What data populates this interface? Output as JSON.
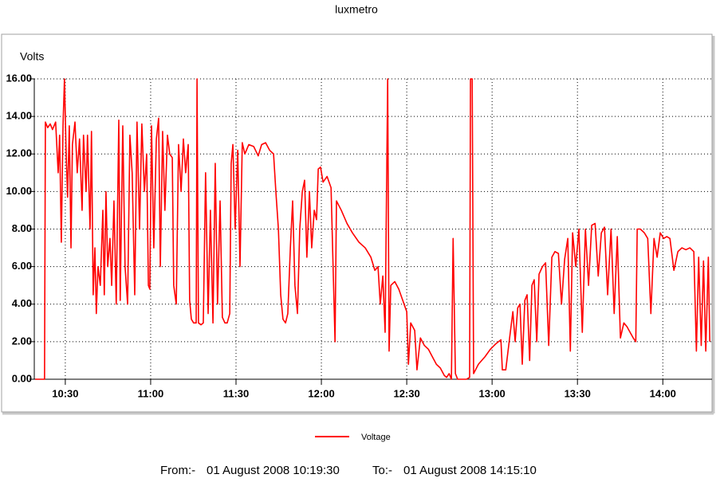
{
  "chart_data": {
    "type": "line",
    "title": "luxmetro",
    "y_label": "Volts",
    "legend": "bottom",
    "grid": true,
    "xlim": [
      619.1,
      857.3
    ],
    "xticks": [
      {
        "value": 630,
        "label": "10:30"
      },
      {
        "value": 660,
        "label": "11:00"
      },
      {
        "value": 690,
        "label": "11:30"
      },
      {
        "value": 720,
        "label": "12:00"
      },
      {
        "value": 750,
        "label": "12:30"
      },
      {
        "value": 780,
        "label": "13:00"
      },
      {
        "value": 810,
        "label": "13:30"
      },
      {
        "value": 840,
        "label": "14:00"
      }
    ],
    "ylim": [
      0,
      16
    ],
    "yticks": [
      {
        "value": 0,
        "label": "0.00"
      },
      {
        "value": 2,
        "label": "2.00"
      },
      {
        "value": 4,
        "label": "4.00"
      },
      {
        "value": 6,
        "label": "6.00"
      },
      {
        "value": 8,
        "label": "8.00"
      },
      {
        "value": 10,
        "label": "10.00"
      },
      {
        "value": 12,
        "label": "12.00"
      },
      {
        "value": 14,
        "label": "14.00"
      },
      {
        "value": 16,
        "label": "16.00"
      }
    ],
    "x": [
      619.4,
      622.7,
      623.0,
      623.8,
      624.7,
      625.5,
      626.6,
      627.5,
      628.0,
      628.6,
      629.2,
      629.7,
      630.3,
      630.8,
      631.4,
      632.0,
      632.5,
      633.4,
      634.2,
      635.0,
      635.9,
      636.4,
      637.3,
      637.8,
      638.7,
      639.2,
      639.8,
      640.4,
      640.9,
      641.5,
      642.3,
      643.2,
      643.7,
      644.3,
      644.9,
      645.7,
      646.3,
      647.1,
      647.9,
      648.8,
      649.3,
      650.2,
      651.0,
      651.9,
      652.7,
      653.5,
      654.4,
      655.2,
      656.1,
      656.9,
      657.8,
      658.6,
      659.2,
      659.7,
      660.3,
      661.1,
      662.0,
      662.8,
      663.4,
      664.2,
      665.0,
      665.9,
      666.7,
      667.6,
      668.1,
      669.0,
      669.8,
      670.7,
      671.5,
      672.3,
      673.2,
      673.7,
      674.3,
      675.1,
      676.0,
      676.3,
      676.8,
      677.7,
      678.5,
      679.3,
      680.2,
      681.0,
      681.9,
      682.7,
      683.5,
      684.4,
      685.2,
      686.1,
      686.9,
      687.8,
      688.3,
      688.9,
      689.7,
      690.6,
      691.4,
      692.2,
      693.1,
      694.5,
      696.2,
      697.8,
      699.0,
      700.4,
      701.8,
      703.2,
      704.0,
      704.9,
      705.7,
      706.5,
      707.4,
      708.2,
      709.1,
      709.9,
      710.7,
      711.6,
      712.4,
      713.3,
      714.1,
      714.9,
      715.8,
      716.6,
      717.5,
      718.3,
      718.9,
      719.7,
      720.6,
      722.0,
      723.4,
      724.8,
      725.3,
      727.0,
      729.0,
      730.9,
      733.2,
      735.4,
      737.4,
      738.8,
      739.9,
      740.7,
      741.6,
      742.4,
      743.3,
      743.8,
      744.4,
      745.8,
      747.2,
      748.6,
      750.0,
      750.6,
      751.4,
      752.8,
      753.6,
      754.8,
      756.2,
      757.6,
      759.0,
      760.4,
      761.8,
      763.2,
      764.0,
      764.9,
      765.7,
      766.3,
      767.1,
      767.9,
      769.1,
      770.2,
      771.0,
      772.1,
      772.4,
      773.0,
      773.5,
      775.2,
      777.5,
      779.4,
      781.4,
      783.1,
      783.6,
      784.8,
      785.6,
      786.4,
      787.3,
      788.1,
      789.0,
      789.8,
      790.6,
      791.5,
      792.3,
      793.2,
      794.0,
      794.8,
      795.7,
      796.5,
      797.7,
      798.8,
      799.9,
      801.0,
      802.1,
      803.3,
      804.4,
      805.5,
      806.6,
      807.5,
      808.3,
      809.4,
      810.5,
      811.7,
      812.8,
      813.9,
      815.0,
      816.2,
      817.3,
      818.4,
      819.5,
      820.6,
      821.8,
      822.9,
      824.0,
      825.1,
      826.3,
      827.4,
      828.5,
      829.6,
      830.5,
      831.0,
      832.1,
      833.5,
      834.7,
      835.8,
      836.9,
      838.0,
      839.1,
      840.3,
      841.4,
      842.5,
      843.9,
      845.3,
      846.7,
      848.1,
      849.5,
      850.9,
      851.8,
      852.6,
      853.5,
      854.3,
      855.1,
      856.0,
      856.5
    ],
    "series": [
      {
        "name": "Voltage",
        "color": "#ff0000",
        "values": [
          0,
          0,
          13.7,
          13.4,
          13.6,
          13.3,
          13.7,
          11,
          13,
          7.3,
          13.5,
          16,
          12,
          9.7,
          13.5,
          7,
          12.5,
          13.7,
          11,
          12.8,
          9,
          13,
          10,
          13,
          8,
          13.2,
          4.5,
          7,
          3.5,
          6,
          5,
          9,
          4.5,
          10,
          6,
          7.5,
          5,
          9.5,
          4,
          13.8,
          4.2,
          13.5,
          6,
          4,
          13,
          11,
          4.5,
          13.7,
          8,
          13.6,
          10,
          12,
          5,
          4.8,
          13.5,
          7,
          12.8,
          13.9,
          6,
          13.2,
          9,
          13,
          12,
          11.8,
          5,
          4,
          12.5,
          10,
          12.8,
          11,
          12.5,
          4.2,
          3.2,
          3,
          3,
          16,
          3,
          2.9,
          3,
          11,
          3.5,
          9,
          3,
          11.5,
          4,
          9.5,
          3.3,
          3,
          3,
          3.5,
          11.5,
          12.5,
          8,
          12.2,
          6,
          12.6,
          12,
          12.5,
          12.4,
          11.9,
          12.5,
          12.6,
          12.2,
          12,
          10,
          8,
          4.5,
          3.2,
          3,
          3.5,
          7,
          9.5,
          5,
          3.5,
          8,
          10,
          10.6,
          6.5,
          10,
          7,
          9,
          8.5,
          11.2,
          11.3,
          10.5,
          10.8,
          10.2,
          2,
          9.5,
          9,
          8.3,
          7.8,
          7.3,
          7,
          6.5,
          5.8,
          6,
          4,
          5.5,
          2.5,
          16,
          1.5,
          5,
          5.2,
          4.8,
          4.2,
          3.6,
          0.8,
          3,
          2.6,
          0.5,
          2.2,
          1.8,
          1.6,
          1.2,
          0.8,
          0.6,
          0.2,
          0.1,
          0.3,
          0,
          7.5,
          0.3,
          0,
          0,
          0,
          0,
          0.1,
          16,
          16,
          0.3,
          0.8,
          1.2,
          1.6,
          1.9,
          2.1,
          0.5,
          0.5,
          1.5,
          2.5,
          3.6,
          2,
          3.8,
          4,
          0.8,
          4.2,
          4.5,
          1,
          5,
          5.3,
          2,
          5.6,
          6,
          6.2,
          1.8,
          6.5,
          6.8,
          6.7,
          4,
          6.4,
          7.5,
          1.5,
          7.8,
          6,
          8,
          2.5,
          8,
          5,
          8.2,
          8.3,
          5.5,
          7.8,
          8.1,
          4.5,
          8,
          3.5,
          7.6,
          2.2,
          3,
          2.8,
          2.5,
          2.2,
          2,
          8,
          8,
          7.8,
          7.5,
          3.5,
          7.5,
          6.5,
          7.8,
          7.5,
          7.6,
          7.5,
          5.8,
          6.8,
          7,
          6.9,
          7,
          6.8,
          1.5,
          6.5,
          1.8,
          6.3,
          1.5,
          6.5,
          2
        ]
      }
    ]
  },
  "footer": {
    "from_label": "From:-",
    "from": "01 August 2008 10:19:30",
    "to_label": "To:-",
    "to": "01 August 2008 14:15:10"
  }
}
